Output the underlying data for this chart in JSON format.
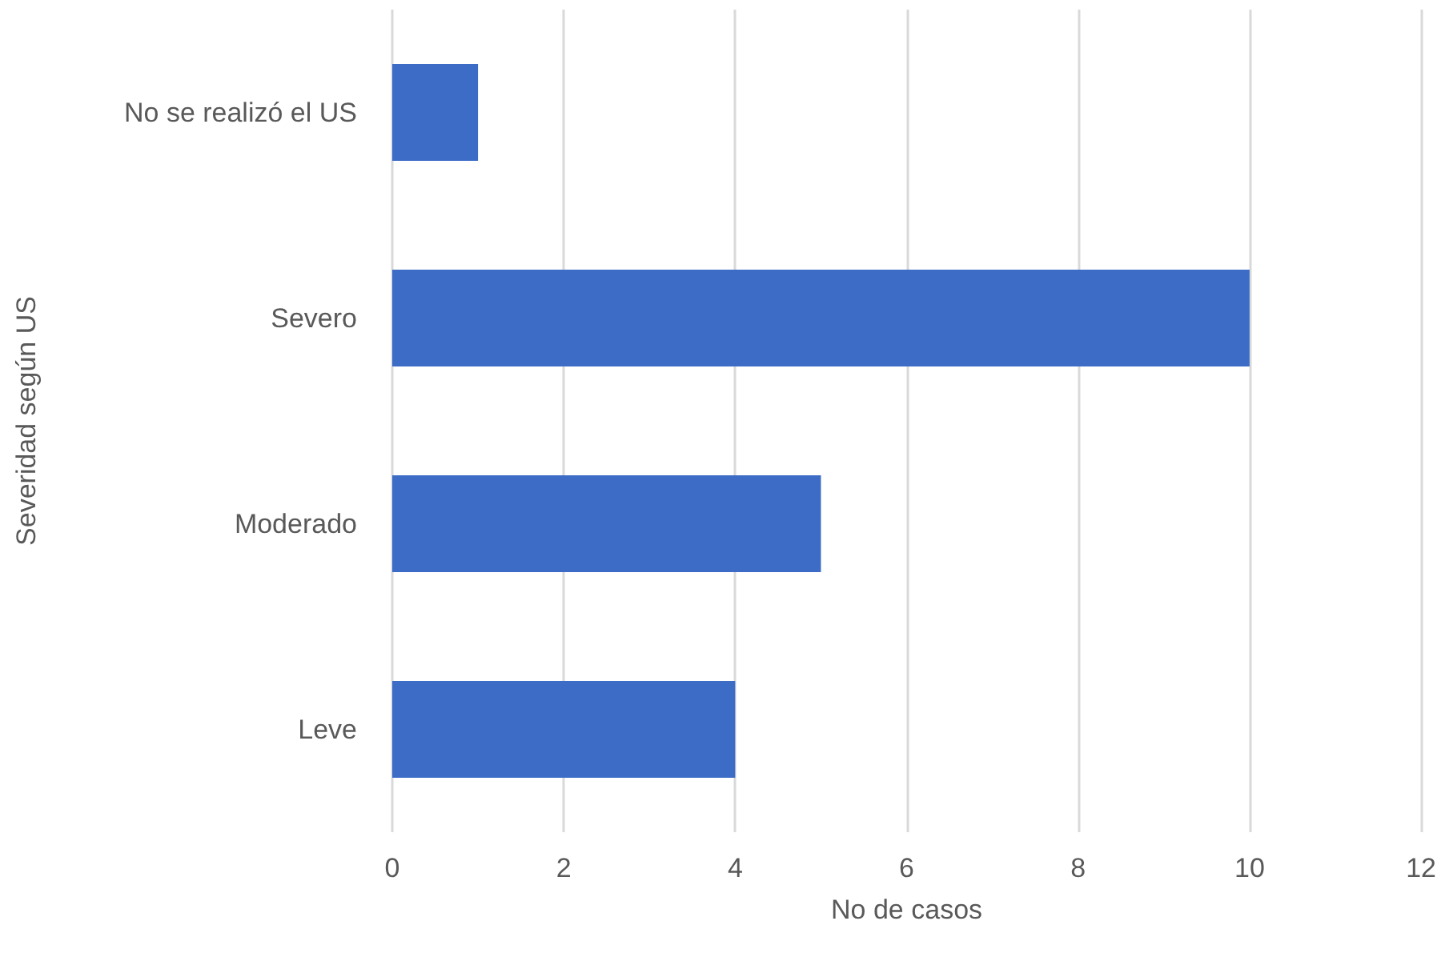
{
  "chart_data": {
    "type": "bar",
    "orientation": "horizontal",
    "xlabel": "No de casos",
    "ylabel": "Severidad según US",
    "categories": [
      "No se realizó el US",
      "Severo",
      "Moderado",
      "Leve"
    ],
    "values": [
      1,
      10,
      5,
      4
    ],
    "color": "#3d6cc6",
    "xlim": [
      0,
      12
    ],
    "xticks": [
      0,
      2,
      4,
      6,
      8,
      10,
      12
    ],
    "grid": "x"
  }
}
